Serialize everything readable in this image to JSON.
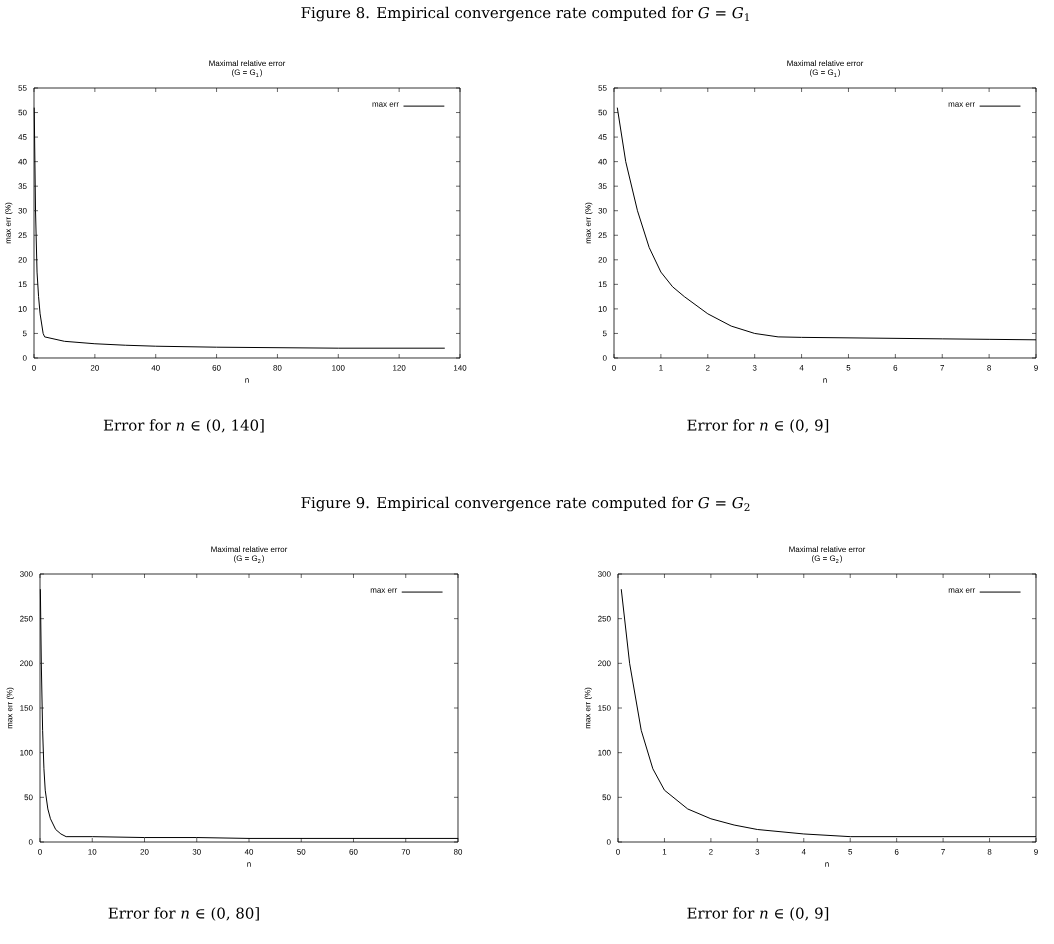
{
  "chart_data": [
    {
      "type": "line",
      "title": "Maximal relative error",
      "subtitle": "(G = G$_{1}$)",
      "xlabel": "n",
      "ylabel": "max err (%)",
      "legend": "top right",
      "grid": false,
      "marker": "none",
      "line_style": "solid",
      "annotations": [
        "Figure 8.  Empirical convergence rate computed for *G* = *G*$_{1}$",
        "Error for *n* ∈ (0, 140]"
      ],
      "xlim": [
        0,
        140
      ],
      "xticks": [
        0,
        20,
        40,
        60,
        80,
        100,
        120,
        140
      ],
      "ylim": [
        0,
        55
      ],
      "yticks": [
        0,
        5,
        10,
        15,
        20,
        25,
        30,
        35,
        40,
        45,
        50,
        55
      ],
      "series": [
        {
          "name": "max err",
          "color": "#000000",
          "x": [
            0.07,
            0.5,
            1,
            1.5,
            2,
            3,
            3.5,
            10,
            20,
            30,
            40,
            60,
            80,
            100,
            120,
            135
          ],
          "values": [
            51,
            30,
            17.5,
            12.5,
            9,
            5,
            4.3,
            3.4,
            2.9,
            2.6,
            2.4,
            2.2,
            2.1,
            2,
            2,
            2
          ]
        }
      ]
    },
    {
      "type": "line",
      "title": "Maximal relative error",
      "subtitle": "(G = G$_{1}$)",
      "xlabel": "n",
      "ylabel": "max err (%)",
      "legend": "top right",
      "grid": false,
      "marker": "none",
      "line_style": "solid",
      "annotations": [
        "Error for *n* ∈ (0, 9]"
      ],
      "xlim": [
        0,
        9
      ],
      "xticks": [
        0,
        1,
        2,
        3,
        4,
        5,
        6,
        7,
        8,
        9
      ],
      "ylim": [
        0,
        55
      ],
      "yticks": [
        0,
        5,
        10,
        15,
        20,
        25,
        30,
        35,
        40,
        45,
        50,
        55
      ],
      "series": [
        {
          "name": "max err",
          "color": "#000000",
          "x": [
            0.07,
            0.25,
            0.5,
            0.75,
            1,
            1.25,
            1.5,
            2,
            2.5,
            3,
            3.5,
            4,
            5,
            6,
            7,
            8,
            9
          ],
          "values": [
            51,
            40,
            30,
            22.5,
            17.5,
            14.5,
            12.5,
            9,
            6.5,
            5,
            4.3,
            4.2,
            4.1,
            4,
            3.9,
            3.8,
            3.7
          ]
        }
      ]
    },
    {
      "type": "line",
      "title": "Maximal relative error",
      "subtitle": "(G = G$_{2}$)",
      "xlabel": "n",
      "ylabel": "max err (%)",
      "legend": "top right",
      "grid": false,
      "marker": "none",
      "line_style": "solid",
      "annotations": [
        "Figure 9.  Empirical convergence rate computed for *G* = *G*$_{2}$",
        "Error for *n* ∈ (0, 80]"
      ],
      "xlim": [
        0,
        80
      ],
      "xticks": [
        0,
        10,
        20,
        30,
        40,
        50,
        60,
        70,
        80
      ],
      "ylim": [
        0,
        300
      ],
      "yticks": [
        0,
        50,
        100,
        150,
        200,
        250,
        300
      ],
      "series": [
        {
          "name": "max err",
          "color": "#000000",
          "x": [
            0.07,
            0.25,
            0.5,
            0.75,
            1,
            1.5,
            2,
            3,
            4,
            5,
            10,
            20,
            30,
            40,
            60,
            80
          ],
          "values": [
            283,
            200,
            125,
            82,
            58,
            37,
            26,
            14,
            9,
            6,
            6,
            5,
            5,
            4,
            4,
            4
          ]
        }
      ]
    },
    {
      "type": "line",
      "title": "Maximal relative error",
      "subtitle": "(G = G$_{2}$)",
      "xlabel": "n",
      "ylabel": "max err (%)",
      "legend": "top right",
      "grid": false,
      "marker": "none",
      "line_style": "solid",
      "annotations": [
        "Error for *n* ∈ (0, 9]"
      ],
      "xlim": [
        0,
        9
      ],
      "xticks": [
        0,
        1,
        2,
        3,
        4,
        5,
        6,
        7,
        8,
        9
      ],
      "ylim": [
        0,
        300
      ],
      "yticks": [
        0,
        50,
        100,
        150,
        200,
        250,
        300
      ],
      "series": [
        {
          "name": "max err",
          "color": "#000000",
          "x": [
            0.07,
            0.25,
            0.5,
            0.75,
            1,
            1.5,
            2,
            2.5,
            3,
            4,
            5,
            6,
            7,
            8,
            9
          ],
          "values": [
            283,
            200,
            125,
            82,
            58,
            37,
            26,
            19,
            14,
            9,
            6,
            6,
            6,
            6,
            6
          ]
        }
      ]
    }
  ]
}
